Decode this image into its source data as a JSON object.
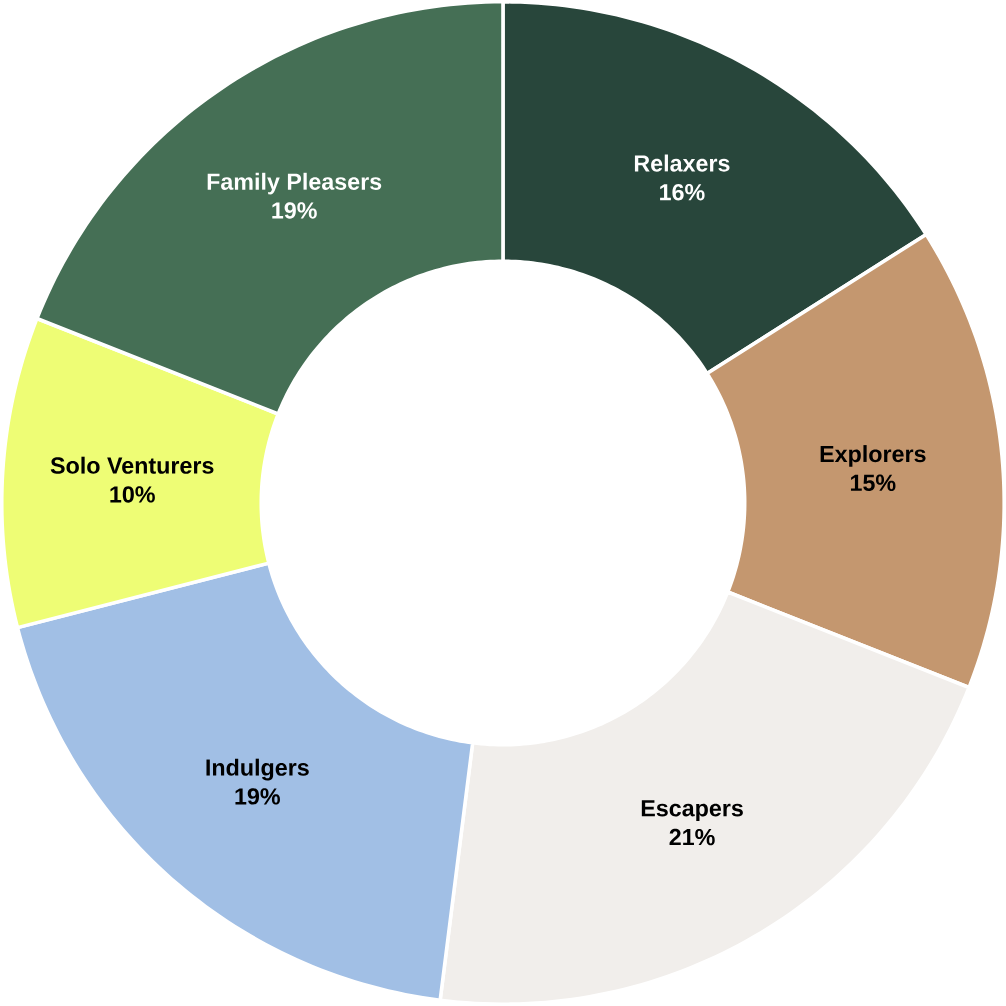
{
  "chart_data": {
    "type": "donut",
    "categories": [
      "Relaxers",
      "Explorers",
      "Escapers",
      "Indulgers",
      "Solo Venturers",
      "Family Pleasers"
    ],
    "values": [
      16,
      15,
      21,
      19,
      10,
      19
    ],
    "value_labels": [
      "16%",
      "15%",
      "21%",
      "19%",
      "10%",
      "19%"
    ],
    "colors": [
      "#28463b",
      "#c4976f",
      "#f1eeeb",
      "#a1bfe5",
      "#eefd75",
      "#456f55"
    ]
  }
}
